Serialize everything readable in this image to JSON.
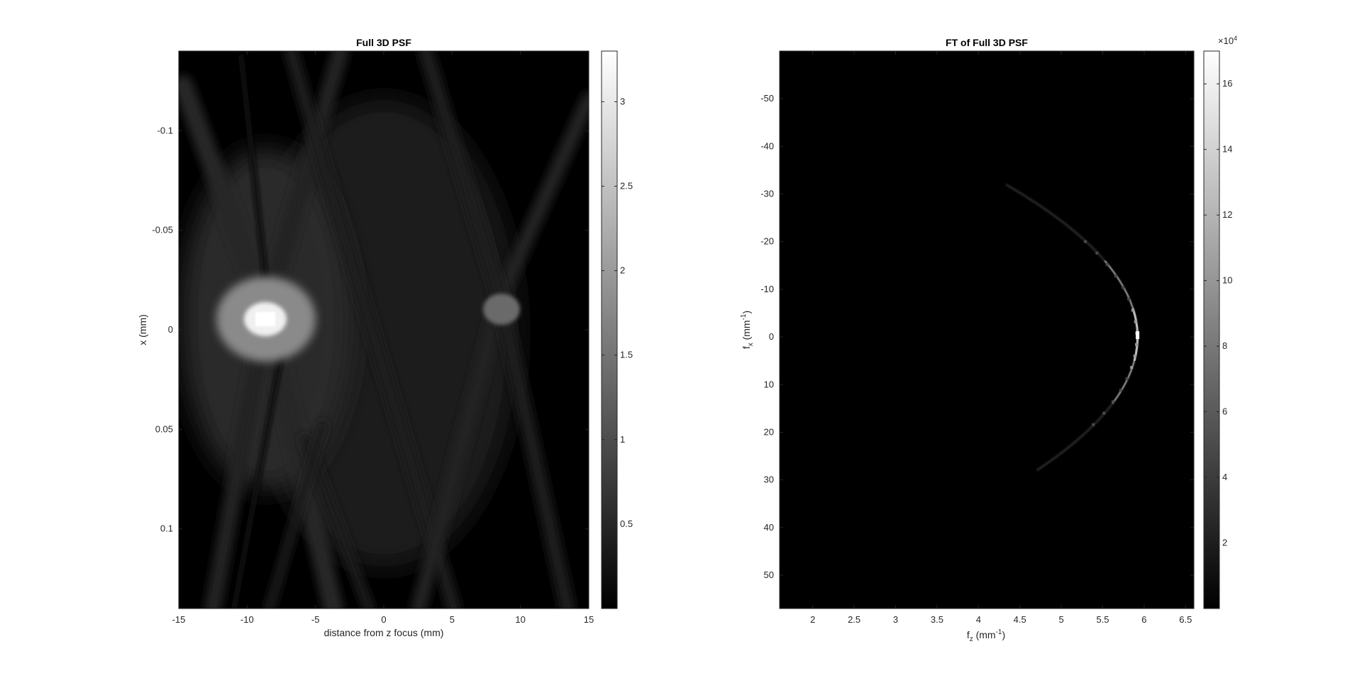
{
  "chart_data": [
    {
      "type": "heatmap",
      "title": "Full 3D PSF",
      "xlabel": "distance from z focus (mm)",
      "ylabel": "x (mm)",
      "xlim": [
        -15,
        15
      ],
      "ylim": [
        -0.14,
        0.14
      ],
      "y_direction": "reverse",
      "xticks": [
        -15,
        -10,
        -5,
        0,
        5,
        10,
        15
      ],
      "xtick_labels": [
        "-15",
        "-10",
        "-5",
        "0",
        "5",
        "10",
        "15"
      ],
      "yticks": [
        -0.1,
        -0.05,
        0,
        0.05,
        0.1
      ],
      "ytick_labels": [
        "-0.1",
        "-0.05",
        "0",
        "0.05",
        "0.1"
      ],
      "colormap": "gray",
      "colorbar": {
        "range": [
          0,
          3.3
        ],
        "ticks": [
          0.5,
          1,
          1.5,
          2,
          2.5,
          3
        ],
        "tick_labels": [
          "0.5",
          "1",
          "1.5",
          "2",
          "2.5",
          "3"
        ]
      },
      "features": [
        {
          "kind": "hotspot",
          "z": -8.7,
          "x": 0.01,
          "value": 3.2
        },
        {
          "kind": "hotspot",
          "z": 8.7,
          "x": -0.015,
          "value": 0.9
        },
        {
          "kind": "x-shaped diagonal bands",
          "crossings_z": [
            -8.7,
            8.7
          ]
        }
      ]
    },
    {
      "type": "heatmap",
      "title": "FT of Full 3D PSF",
      "xlabel": "f",
      "xlabel_sub": "z",
      "xlabel_unit": " (mm",
      "xlabel_exp": "-1",
      "ylabel": "f",
      "ylabel_sub": "x",
      "ylabel_unit": " (mm",
      "ylabel_exp": "-1",
      "xlim": [
        1.6,
        6.6
      ],
      "ylim": [
        -60,
        57
      ],
      "y_direction": "reverse",
      "xticks": [
        2,
        2.5,
        3,
        3.5,
        4,
        4.5,
        5,
        5.5,
        6,
        6.5
      ],
      "xtick_labels": [
        "2",
        "2.5",
        "3",
        "3.5",
        "4",
        "4.5",
        "5",
        "5.5",
        "6",
        "6.5"
      ],
      "yticks": [
        -50,
        -40,
        -30,
        -20,
        -10,
        0,
        10,
        20,
        30,
        40,
        50
      ],
      "ytick_labels": [
        "-50",
        "-40",
        "-30",
        "-20",
        "-10",
        "0",
        "10",
        "20",
        "30",
        "40",
        "50"
      ],
      "colormap": "gray",
      "colorbar": {
        "range": [
          0,
          170000
        ],
        "ticks": [
          2,
          4,
          6,
          8,
          10,
          12,
          14,
          16
        ],
        "tick_labels": [
          "2",
          "4",
          "6",
          "8",
          "10",
          "12",
          "14",
          "16"
        ],
        "multiplier_prefix": "×10",
        "multiplier_exp": "4"
      },
      "features": [
        {
          "kind": "arc",
          "apex_fz": 5.92,
          "apex_fx": 0,
          "fz_at_fx_25": 4.95,
          "peak_value": 170000
        }
      ]
    }
  ]
}
